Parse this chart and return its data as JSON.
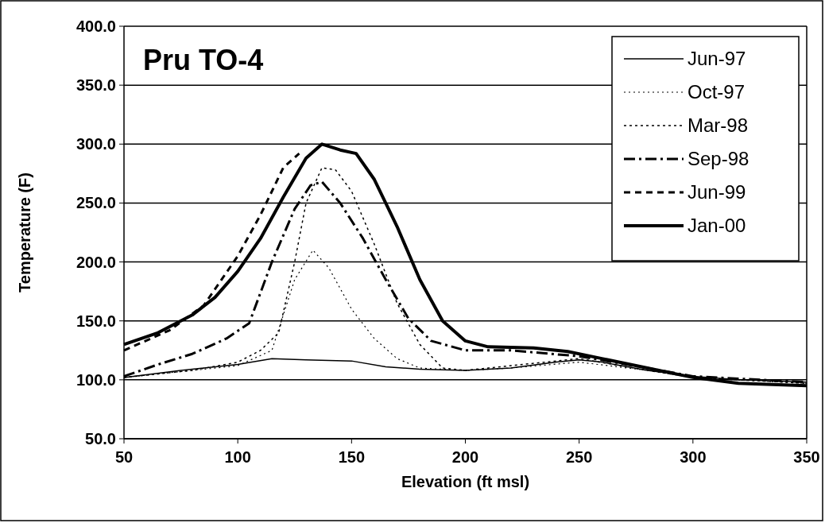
{
  "chart_data": {
    "type": "line",
    "title": "Pru TO-4",
    "xlabel": "Elevation (ft  msl)",
    "ylabel": "Temperature (F)",
    "xlim": [
      50,
      350
    ],
    "xticks": [
      50,
      100,
      150,
      200,
      250,
      300,
      350
    ],
    "ylim": [
      50,
      400
    ],
    "yticks": [
      {
        "value": 50,
        "label": "50.0"
      },
      {
        "value": 100,
        "label": "100.0"
      },
      {
        "value": 150,
        "label": "150.0"
      },
      {
        "value": 200,
        "label": "200.0"
      },
      {
        "value": 250,
        "label": "250.0"
      },
      {
        "value": 300,
        "label": "300.0"
      },
      {
        "value": 350,
        "label": "350.0"
      },
      {
        "value": 400,
        "label": "400.0"
      }
    ],
    "grid": "y",
    "legend": "top right",
    "series": [
      {
        "name": "Jun-97",
        "color": "#000000",
        "line_style": "solid",
        "x": [
          50,
          75,
          100,
          115,
          130,
          150,
          165,
          180,
          200,
          220,
          240,
          250,
          260,
          280,
          300,
          320,
          350
        ],
        "values": [
          102,
          108,
          113,
          118,
          117,
          116,
          111,
          109,
          108,
          110,
          115,
          117,
          115,
          108,
          103,
          100,
          98
        ]
      },
      {
        "name": "Oct-97",
        "color": "#000000",
        "line_style": "dotted",
        "x": [
          50,
          80,
          100,
          115,
          125,
          133,
          140,
          150,
          160,
          170,
          180,
          200,
          220,
          250,
          280,
          300,
          350
        ],
        "values": [
          102,
          108,
          112,
          125,
          185,
          210,
          195,
          160,
          135,
          118,
          110,
          108,
          110,
          115,
          108,
          102,
          97
        ]
      },
      {
        "name": "Mar-98",
        "color": "#000000",
        "line_style": "dotted",
        "x": [
          50,
          80,
          100,
          110,
          118,
          125,
          130,
          137,
          143,
          150,
          160,
          170,
          180,
          190,
          200,
          220,
          250,
          280,
          300,
          350
        ],
        "values": [
          102,
          108,
          115,
          125,
          140,
          200,
          250,
          280,
          278,
          260,
          215,
          165,
          130,
          110,
          108,
          112,
          118,
          108,
          102,
          97
        ]
      },
      {
        "name": "Sep-98",
        "color": "#000000",
        "line_style": "dashed",
        "x": [
          50,
          65,
          80,
          95,
          105,
          115,
          125,
          132,
          137,
          145,
          155,
          165,
          175,
          185,
          200,
          220,
          250,
          280,
          300,
          350
        ],
        "values": [
          103,
          113,
          122,
          135,
          148,
          200,
          245,
          265,
          268,
          250,
          220,
          185,
          152,
          133,
          125,
          125,
          120,
          110,
          103,
          98
        ]
      },
      {
        "name": "Jun-99",
        "color": "#000000",
        "line_style": "dashed",
        "x": [
          50,
          70,
          85,
          100,
          110,
          120,
          127
        ],
        "values": [
          125,
          142,
          163,
          205,
          240,
          280,
          292
        ]
      },
      {
        "name": "Jan-00",
        "color": "#000000",
        "line_style": "solid",
        "x": [
          50,
          65,
          80,
          90,
          100,
          110,
          120,
          130,
          137,
          145,
          152,
          160,
          170,
          180,
          190,
          200,
          210,
          230,
          245,
          260,
          280,
          300,
          320,
          350
        ],
        "values": [
          130,
          140,
          155,
          170,
          192,
          220,
          255,
          288,
          300,
          295,
          292,
          270,
          230,
          185,
          150,
          133,
          128,
          127,
          124,
          118,
          110,
          102,
          97,
          95
        ]
      }
    ]
  }
}
